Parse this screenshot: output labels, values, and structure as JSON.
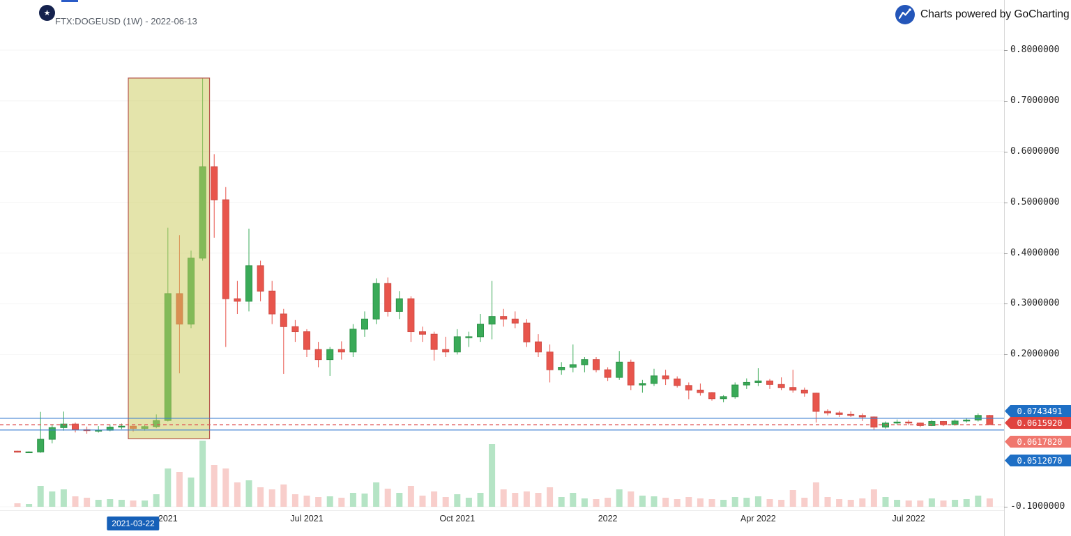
{
  "header": {
    "symbol_title": "FTX:DOGEUSD (1W) - 2022-06-13",
    "badge_glyph": "★"
  },
  "powered_by": {
    "text": "Charts powered by GoCharting",
    "icon": "trend-line-icon"
  },
  "colors": {
    "background": "#ffffff",
    "candle_up": "#3aaa58",
    "candle_up_border": "#2c9247",
    "candle_down": "#e8554c",
    "candle_down_border": "#cf4b44",
    "volume_up": "rgba(120,205,150,0.55)",
    "volume_down": "rgba(243,166,160,0.55)",
    "annotation_fill": "rgba(202,202,88,0.5)",
    "annotation_border": "#b5544c",
    "level_line_blue": "#3d7fd0",
    "level_line_red": "#e05555",
    "axis_line": "#d8d8d8",
    "tag_blue": "#1e6fc5",
    "tag_red": "#e0433f",
    "tag_light_red": "#f0776e",
    "date_tag_bg": "#1660b8"
  },
  "chart_data": {
    "type": "candlestick",
    "symbol": "FTX:DOGEUSD",
    "interval": "1W",
    "selected_date": "2022-06-13",
    "start_week": "2021-01-11",
    "ylim": [
      -0.1,
      0.8
    ],
    "volume_unit": "relative",
    "y_ticks": [
      {
        "label": "0.8000000",
        "value": 0.8
      },
      {
        "label": "0.7000000",
        "value": 0.7
      },
      {
        "label": "0.6000000",
        "value": 0.6
      },
      {
        "label": "0.5000000",
        "value": 0.5
      },
      {
        "label": "0.4000000",
        "value": 0.4
      },
      {
        "label": "0.3000000",
        "value": 0.3
      },
      {
        "label": "0.2000000",
        "value": 0.2
      },
      {
        "label": "-0.1000000",
        "value": -0.1
      }
    ],
    "x_ticks": [
      {
        "label": "2021",
        "week": 13
      },
      {
        "label": "Jul 2021",
        "week": 25
      },
      {
        "label": "Oct 2021",
        "week": 38
      },
      {
        "label": "2022",
        "week": 51
      },
      {
        "label": "Apr 2022",
        "week": 64
      },
      {
        "label": "Jul 2022",
        "week": 77
      }
    ],
    "candles": [
      [
        0.0095,
        0.0105,
        0.0068,
        0.0077,
        5
      ],
      [
        0.0077,
        0.0092,
        0.0068,
        0.0081,
        4
      ],
      [
        0.0081,
        0.087,
        0.0064,
        0.033,
        30
      ],
      [
        0.033,
        0.063,
        0.025,
        0.056,
        22
      ],
      [
        0.056,
        0.0876,
        0.05,
        0.063,
        25
      ],
      [
        0.063,
        0.066,
        0.0465,
        0.052,
        15
      ],
      [
        0.052,
        0.058,
        0.044,
        0.05,
        13
      ],
      [
        0.05,
        0.059,
        0.0462,
        0.0508,
        10
      ],
      [
        0.0508,
        0.0625,
        0.0488,
        0.057,
        11
      ],
      [
        0.057,
        0.064,
        0.053,
        0.0588,
        10
      ],
      [
        0.0588,
        0.0595,
        0.048,
        0.0545,
        9
      ],
      [
        0.0545,
        0.061,
        0.05,
        0.058,
        9
      ],
      [
        0.058,
        0.082,
        0.0548,
        0.07,
        18
      ],
      [
        0.07,
        0.45,
        0.068,
        0.32,
        55
      ],
      [
        0.32,
        0.435,
        0.163,
        0.26,
        50
      ],
      [
        0.26,
        0.405,
        0.252,
        0.39,
        42
      ],
      [
        0.39,
        0.745,
        0.385,
        0.57,
        95
      ],
      [
        0.57,
        0.595,
        0.43,
        0.505,
        60
      ],
      [
        0.505,
        0.53,
        0.215,
        0.31,
        55
      ],
      [
        0.31,
        0.345,
        0.28,
        0.305,
        35
      ],
      [
        0.305,
        0.448,
        0.285,
        0.375,
        38
      ],
      [
        0.375,
        0.385,
        0.305,
        0.325,
        28
      ],
      [
        0.325,
        0.345,
        0.26,
        0.28,
        25
      ],
      [
        0.28,
        0.29,
        0.162,
        0.255,
        32
      ],
      [
        0.255,
        0.268,
        0.225,
        0.245,
        18
      ],
      [
        0.245,
        0.25,
        0.195,
        0.21,
        16
      ],
      [
        0.21,
        0.225,
        0.175,
        0.19,
        14
      ],
      [
        0.19,
        0.215,
        0.158,
        0.21,
        15
      ],
      [
        0.21,
        0.226,
        0.19,
        0.205,
        13
      ],
      [
        0.205,
        0.26,
        0.195,
        0.25,
        20
      ],
      [
        0.25,
        0.285,
        0.235,
        0.27,
        19
      ],
      [
        0.27,
        0.35,
        0.26,
        0.34,
        35
      ],
      [
        0.34,
        0.352,
        0.275,
        0.285,
        26
      ],
      [
        0.285,
        0.325,
        0.27,
        0.31,
        20
      ],
      [
        0.31,
        0.315,
        0.225,
        0.245,
        30
      ],
      [
        0.245,
        0.255,
        0.225,
        0.24,
        16
      ],
      [
        0.24,
        0.245,
        0.188,
        0.21,
        22
      ],
      [
        0.21,
        0.235,
        0.195,
        0.205,
        14
      ],
      [
        0.205,
        0.25,
        0.2,
        0.235,
        18
      ],
      [
        0.235,
        0.245,
        0.215,
        0.235,
        13
      ],
      [
        0.235,
        0.28,
        0.225,
        0.26,
        20
      ],
      [
        0.26,
        0.345,
        0.23,
        0.275,
        90
      ],
      [
        0.275,
        0.29,
        0.255,
        0.27,
        25
      ],
      [
        0.27,
        0.285,
        0.252,
        0.262,
        20
      ],
      [
        0.262,
        0.27,
        0.215,
        0.225,
        22
      ],
      [
        0.225,
        0.24,
        0.195,
        0.205,
        20
      ],
      [
        0.205,
        0.22,
        0.145,
        0.17,
        28
      ],
      [
        0.17,
        0.185,
        0.16,
        0.175,
        14
      ],
      [
        0.175,
        0.22,
        0.165,
        0.18,
        20
      ],
      [
        0.18,
        0.195,
        0.165,
        0.19,
        12
      ],
      [
        0.19,
        0.195,
        0.165,
        0.17,
        11
      ],
      [
        0.17,
        0.175,
        0.148,
        0.155,
        13
      ],
      [
        0.155,
        0.207,
        0.15,
        0.185,
        25
      ],
      [
        0.185,
        0.19,
        0.13,
        0.14,
        22
      ],
      [
        0.14,
        0.15,
        0.125,
        0.143,
        16
      ],
      [
        0.143,
        0.172,
        0.138,
        0.158,
        15
      ],
      [
        0.158,
        0.17,
        0.14,
        0.152,
        13
      ],
      [
        0.152,
        0.157,
        0.135,
        0.139,
        11
      ],
      [
        0.139,
        0.145,
        0.112,
        0.13,
        14
      ],
      [
        0.13,
        0.143,
        0.119,
        0.125,
        12
      ],
      [
        0.125,
        0.126,
        0.109,
        0.113,
        11
      ],
      [
        0.113,
        0.12,
        0.106,
        0.117,
        10
      ],
      [
        0.117,
        0.145,
        0.113,
        0.14,
        14
      ],
      [
        0.14,
        0.153,
        0.132,
        0.145,
        13
      ],
      [
        0.145,
        0.173,
        0.138,
        0.148,
        15
      ],
      [
        0.148,
        0.152,
        0.132,
        0.141,
        11
      ],
      [
        0.141,
        0.155,
        0.13,
        0.135,
        10
      ],
      [
        0.135,
        0.17,
        0.125,
        0.13,
        24
      ],
      [
        0.13,
        0.135,
        0.117,
        0.124,
        13
      ],
      [
        0.124,
        0.125,
        0.066,
        0.088,
        35
      ],
      [
        0.088,
        0.092,
        0.08,
        0.085,
        14
      ],
      [
        0.085,
        0.089,
        0.077,
        0.082,
        11
      ],
      [
        0.082,
        0.088,
        0.077,
        0.08,
        10
      ],
      [
        0.08,
        0.084,
        0.069,
        0.077,
        12
      ],
      [
        0.077,
        0.078,
        0.0512,
        0.057,
        25
      ],
      [
        0.057,
        0.068,
        0.054,
        0.065,
        14
      ],
      [
        0.065,
        0.072,
        0.062,
        0.067,
        10
      ],
      [
        0.067,
        0.071,
        0.061,
        0.065,
        9
      ],
      [
        0.065,
        0.066,
        0.057,
        0.06,
        9
      ],
      [
        0.06,
        0.071,
        0.059,
        0.068,
        12
      ],
      [
        0.068,
        0.069,
        0.059,
        0.062,
        9
      ],
      [
        0.062,
        0.072,
        0.06,
        0.069,
        10
      ],
      [
        0.069,
        0.0743,
        0.066,
        0.071,
        11
      ],
      [
        0.071,
        0.084,
        0.068,
        0.08,
        16
      ],
      [
        0.08,
        0.081,
        0.0612,
        0.0618,
        12
      ]
    ],
    "lines": [
      {
        "price": 0.0743491,
        "color": "#3d7fd0",
        "style": "solid"
      },
      {
        "price": 0.061592,
        "color": "#e05555",
        "style": "dashed"
      },
      {
        "price": 0.061782,
        "color": "#e05555",
        "style": "dashed"
      },
      {
        "price": 0.051207,
        "color": "#3d7fd0",
        "style": "solid"
      }
    ],
    "price_tags": [
      {
        "text": "0.0743491",
        "color": "#1e6fc5"
      },
      {
        "text": "0.0615920",
        "color": "#e0433f"
      },
      {
        "text": "0.0617820",
        "color": "#f0776e"
      },
      {
        "text": "0.0512070",
        "color": "#1e6fc5"
      }
    ],
    "date_tag": {
      "text": "2021-03-22",
      "week": 10
    },
    "annotation_rect": {
      "from_week": 10,
      "to_week": 16.6,
      "top_price": 0.745,
      "bottom_price": 0.034
    }
  }
}
